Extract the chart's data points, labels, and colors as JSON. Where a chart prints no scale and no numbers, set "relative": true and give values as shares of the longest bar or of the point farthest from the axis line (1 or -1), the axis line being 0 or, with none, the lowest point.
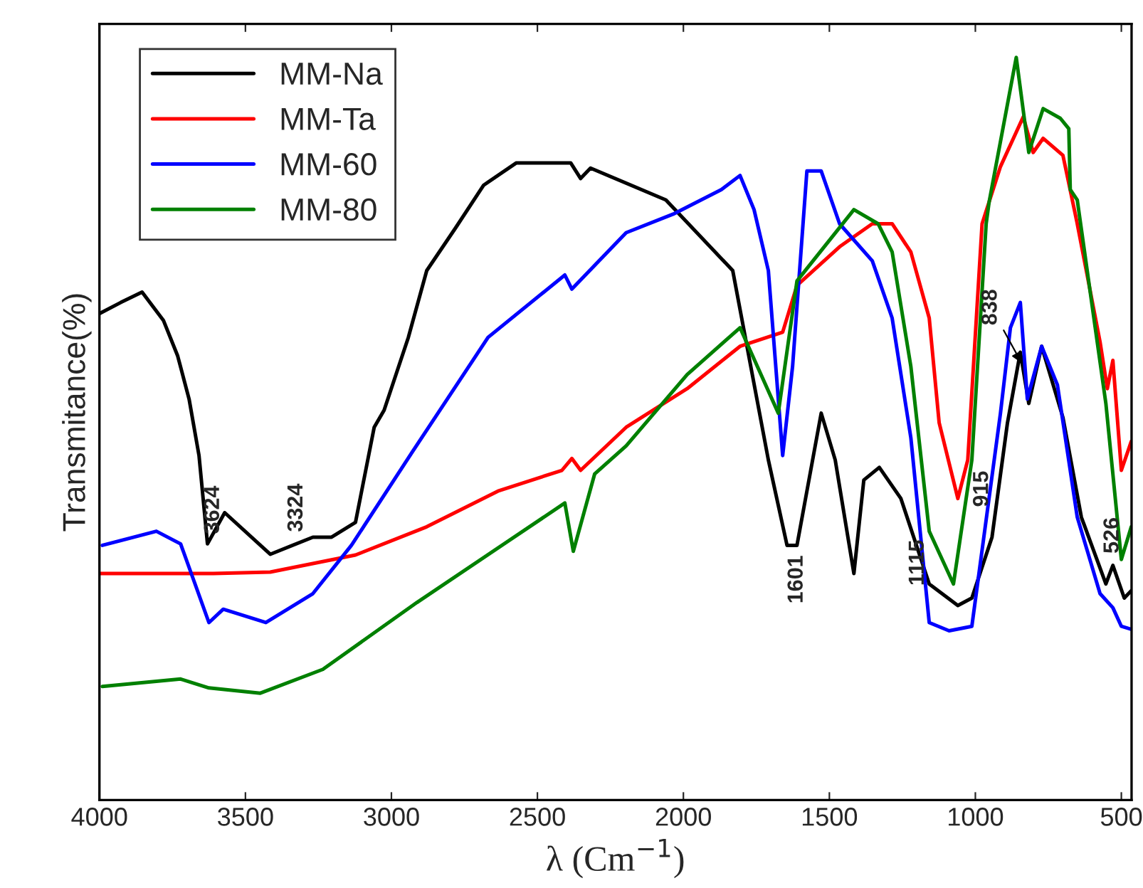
{
  "chart_data": {
    "type": "line",
    "relative": true,
    "xlabel": "λ (Cm$^{−1}$)",
    "ylabel": "Transmitance(%)",
    "xlim": [
      4000,
      465
    ],
    "xticks": [
      4000,
      3500,
      3000,
      2500,
      2000,
      1500,
      1000,
      500
    ],
    "legend": "top left",
    "grid": false,
    "tick_labels": "x",
    "line_style": "solid",
    "marker": "none",
    "series": [
      {
        "name": "MM-Na",
        "color": "#000000",
        "x": [
          4000,
          3927,
          3854,
          3781,
          3732,
          3693,
          3659,
          3630,
          3571,
          3415,
          3269,
          3205,
          3123,
          3059,
          3025,
          2942,
          2879,
          2781,
          2684,
          2572,
          2386,
          2352,
          2318,
          2060,
          1831,
          1709,
          1645,
          1611,
          1528,
          1480,
          1416,
          1382,
          1329,
          1255,
          1158,
          1060,
          1012,
          943,
          890,
          846,
          817,
          773,
          700,
          637,
          553,
          529,
          490,
          466
        ],
        "values": [
          0.655,
          0.67,
          0.684,
          0.646,
          0.598,
          0.54,
          0.464,
          0.345,
          0.387,
          0.331,
          0.354,
          0.354,
          0.374,
          0.502,
          0.525,
          0.623,
          0.713,
          0.77,
          0.828,
          0.858,
          0.858,
          0.837,
          0.851,
          0.808,
          0.713,
          0.458,
          0.343,
          0.343,
          0.521,
          0.458,
          0.305,
          0.431,
          0.448,
          0.406,
          0.291,
          0.262,
          0.272,
          0.354,
          0.508,
          0.603,
          0.534,
          0.611,
          0.515,
          0.381,
          0.291,
          0.316,
          0.272,
          0.282
        ]
      },
      {
        "name": "MM-Ta",
        "color": "#ff0000",
        "x": [
          4000,
          3610,
          3415,
          3123,
          2879,
          2635,
          2416,
          2382,
          2352,
          2196,
          1987,
          1806,
          1660,
          1611,
          1465,
          1353,
          1285,
          1221,
          1158,
          1124,
          1060,
          1026,
          977,
          914,
          836,
          802,
          768,
          700,
          652,
          573,
          548,
          529,
          500,
          466
        ],
        "values": [
          0.305,
          0.305,
          0.307,
          0.33,
          0.368,
          0.416,
          0.444,
          0.46,
          0.444,
          0.502,
          0.554,
          0.611,
          0.63,
          0.693,
          0.745,
          0.776,
          0.776,
          0.738,
          0.649,
          0.508,
          0.406,
          0.458,
          0.776,
          0.853,
          0.92,
          0.872,
          0.891,
          0.868,
          0.778,
          0.617,
          0.554,
          0.592,
          0.444,
          0.483
        ]
      },
      {
        "name": "MM-60",
        "color": "#0000ff",
        "x": [
          3990,
          3805,
          3722,
          3625,
          3576,
          3430,
          3269,
          3137,
          2928,
          2669,
          2406,
          2382,
          2196,
          2035,
          1870,
          1806,
          1758,
          1709,
          1660,
          1626,
          1577,
          1528,
          1465,
          1353,
          1285,
          1221,
          1158,
          1090,
          1012,
          914,
          880,
          846,
          822,
          773,
          719,
          651,
          573,
          529,
          500,
          466
        ],
        "values": [
          0.343,
          0.362,
          0.345,
          0.239,
          0.257,
          0.239,
          0.278,
          0.343,
          0.469,
          0.623,
          0.707,
          0.688,
          0.764,
          0.789,
          0.822,
          0.841,
          0.795,
          0.713,
          0.464,
          0.584,
          0.847,
          0.847,
          0.776,
          0.726,
          0.649,
          0.488,
          0.239,
          0.228,
          0.234,
          0.521,
          0.636,
          0.67,
          0.54,
          0.611,
          0.559,
          0.381,
          0.278,
          0.259,
          0.234,
          0.23
        ]
      },
      {
        "name": "MM-80",
        "color": "#008000",
        "x": [
          3990,
          3722,
          3625,
          3449,
          3235,
          2913,
          2406,
          2377,
          2304,
          2196,
          1987,
          1806,
          1675,
          1611,
          1416,
          1333,
          1285,
          1221,
          1158,
          1075,
          1012,
          963,
          953,
          860,
          817,
          768,
          709,
          680,
          675,
          651,
          553,
          500,
          466
        ],
        "values": [
          0.153,
          0.163,
          0.151,
          0.144,
          0.176,
          0.266,
          0.4,
          0.335,
          0.439,
          0.477,
          0.573,
          0.636,
          0.521,
          0.699,
          0.795,
          0.776,
          0.738,
          0.584,
          0.362,
          0.291,
          0.458,
          0.776,
          0.805,
          1.0,
          0.872,
          0.931,
          0.918,
          0.904,
          0.822,
          0.808,
          0.534,
          0.324,
          0.368
        ]
      }
    ],
    "annotations": [
      {
        "text": "3624",
        "x": 3630,
        "y": 0.345
      },
      {
        "text": "3324",
        "x": 3324,
        "y": 0.345
      },
      {
        "text": "1601",
        "x": 1611,
        "y": 0.343
      },
      {
        "text": "1115",
        "x": 1115,
        "y": 0.278
      },
      {
        "text": "915",
        "x": 915,
        "y": 0.435
      },
      {
        "text": "838",
        "x": 838,
        "y": 0.586
      },
      {
        "text": "526",
        "x": 529,
        "y": 0.316
      }
    ]
  }
}
